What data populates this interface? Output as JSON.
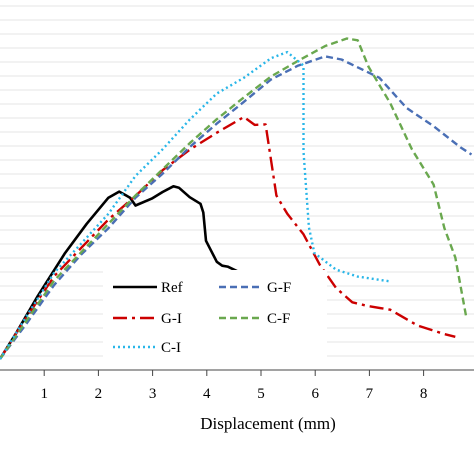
{
  "chart_data": {
    "type": "line",
    "xlabel": "Displacement (mm)",
    "ylabel": "",
    "xlim": [
      0,
      8.7
    ],
    "ylim": [
      0,
      100
    ],
    "grid": "horizontal",
    "legend_position": "lower-center",
    "x_ticks": [
      "1",
      "2",
      "3",
      "4",
      "5",
      "6",
      "7",
      "8"
    ],
    "series": [
      {
        "name": "Ref",
        "color": "#000000",
        "style": "solid",
        "points": [
          [
            0,
            0
          ],
          [
            0.3,
            6
          ],
          [
            0.7,
            14.5
          ],
          [
            1.2,
            24.3
          ],
          [
            1.6,
            31
          ],
          [
            2.0,
            37
          ],
          [
            2.2,
            38.4
          ],
          [
            2.4,
            37
          ],
          [
            2.5,
            35.2
          ],
          [
            2.8,
            36.8
          ],
          [
            3.0,
            38.3
          ],
          [
            3.2,
            39.6
          ],
          [
            3.3,
            39.3
          ],
          [
            3.5,
            37.1
          ],
          [
            3.7,
            35.6
          ],
          [
            3.75,
            33.6
          ],
          [
            3.8,
            27.1
          ],
          [
            3.9,
            24.7
          ],
          [
            4.0,
            22.3
          ],
          [
            4.1,
            21.4
          ],
          [
            4.2,
            21.2
          ],
          [
            4.4,
            20
          ]
        ]
      },
      {
        "name": "G-I",
        "color": "#cc0000",
        "style": "dashdot",
        "points": [
          [
            0,
            0
          ],
          [
            0.5,
            9.8
          ],
          [
            1.0,
            19
          ],
          [
            1.5,
            25.5
          ],
          [
            2.0,
            32
          ],
          [
            2.5,
            37.4
          ],
          [
            3.0,
            43.3
          ],
          [
            3.5,
            48
          ],
          [
            4.0,
            51.9
          ],
          [
            4.5,
            55.5
          ],
          [
            4.7,
            53.7
          ],
          [
            4.9,
            53.8
          ],
          [
            5.1,
            37.5
          ],
          [
            5.3,
            33.3
          ],
          [
            5.6,
            28.6
          ],
          [
            5.9,
            21.6
          ],
          [
            6.2,
            16.3
          ],
          [
            6.5,
            13
          ],
          [
            6.8,
            12.1
          ],
          [
            7.2,
            11.3
          ],
          [
            7.7,
            7.7
          ],
          [
            8.2,
            5.7
          ],
          [
            8.4,
            5.1
          ]
        ]
      },
      {
        "name": "G-F",
        "color": "#4a6fb5",
        "style": "dashed",
        "points": [
          [
            0,
            0
          ],
          [
            0.5,
            8.3
          ],
          [
            1.0,
            17
          ],
          [
            1.5,
            24
          ],
          [
            2.0,
            30
          ],
          [
            2.5,
            37
          ],
          [
            3.0,
            42.5
          ],
          [
            3.5,
            48.6
          ],
          [
            4.0,
            54
          ],
          [
            4.5,
            59
          ],
          [
            5.0,
            64.1
          ],
          [
            5.5,
            67.3
          ],
          [
            6.0,
            69.4
          ],
          [
            6.3,
            68.7
          ],
          [
            7.0,
            64.5
          ],
          [
            7.5,
            57.6
          ],
          [
            8.0,
            53.4
          ],
          [
            8.5,
            48.5
          ],
          [
            8.7,
            46.9
          ]
        ]
      },
      {
        "name": "C-F",
        "color": "#6aa84f",
        "style": "dashed",
        "points": [
          [
            0,
            0
          ],
          [
            0.5,
            9
          ],
          [
            1.0,
            18
          ],
          [
            1.5,
            24.5
          ],
          [
            2.0,
            31
          ],
          [
            2.5,
            37.5
          ],
          [
            3.0,
            43.5
          ],
          [
            3.5,
            49.5
          ],
          [
            4.0,
            55
          ],
          [
            4.5,
            60
          ],
          [
            5.0,
            64.8
          ],
          [
            5.5,
            68.4
          ],
          [
            6.0,
            71.8
          ],
          [
            6.4,
            73.5
          ],
          [
            6.6,
            73.1
          ],
          [
            6.8,
            67
          ],
          [
            7.2,
            58.7
          ],
          [
            7.6,
            48.1
          ],
          [
            8.0,
            40
          ],
          [
            8.2,
            30
          ],
          [
            8.4,
            23.3
          ],
          [
            8.6,
            9.8
          ]
        ]
      },
      {
        "name": "C-I",
        "color": "#29b6e8",
        "style": "dotted",
        "points": [
          [
            0,
            0
          ],
          [
            0.5,
            10
          ],
          [
            1.0,
            19.8
          ],
          [
            1.5,
            26.5
          ],
          [
            2.0,
            33.3
          ],
          [
            2.5,
            42
          ],
          [
            3.0,
            48.1
          ],
          [
            3.5,
            54.9
          ],
          [
            4.0,
            60.9
          ],
          [
            4.5,
            64.5
          ],
          [
            5.0,
            69
          ],
          [
            5.3,
            70.4
          ],
          [
            5.6,
            67.3
          ],
          [
            5.6,
            47.6
          ],
          [
            5.7,
            30.2
          ],
          [
            5.8,
            24.3
          ],
          [
            6.2,
            20.5
          ],
          [
            6.6,
            18.9
          ],
          [
            7.2,
            17.8
          ]
        ]
      }
    ]
  }
}
